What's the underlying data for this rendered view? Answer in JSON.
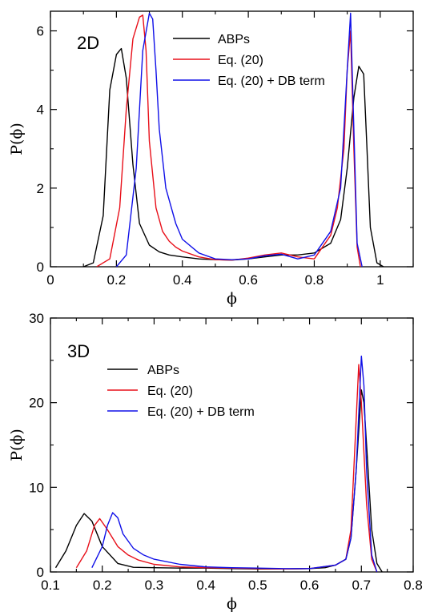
{
  "chart_data": [
    {
      "type": "line",
      "panel_label": "2D",
      "xlabel": "ϕ",
      "ylabel": "P(ϕ)",
      "xlim": [
        0,
        1.1
      ],
      "ylim": [
        0,
        6.5
      ],
      "xticks": [
        0,
        0.2,
        0.4,
        0.6,
        0.8,
        1
      ],
      "xtick_labels": [
        "0",
        "0.2",
        "0.4",
        "0.6",
        "0.8",
        "1"
      ],
      "yticks": [
        0,
        2,
        4,
        6
      ],
      "ytick_labels": [
        "0",
        "2",
        "4",
        "6"
      ],
      "grid": false,
      "legend_position": "top-right",
      "series": [
        {
          "name": "ABPs",
          "color": "#000000",
          "x": [
            0.1,
            0.13,
            0.16,
            0.18,
            0.2,
            0.215,
            0.23,
            0.25,
            0.27,
            0.3,
            0.33,
            0.36,
            0.4,
            0.45,
            0.5,
            0.55,
            0.6,
            0.65,
            0.7,
            0.75,
            0.8,
            0.85,
            0.88,
            0.9,
            0.92,
            0.935,
            0.95,
            0.96,
            0.97,
            0.99,
            1.01
          ],
          "y": [
            0.0,
            0.1,
            1.3,
            4.5,
            5.4,
            5.55,
            4.8,
            2.6,
            1.1,
            0.55,
            0.38,
            0.3,
            0.25,
            0.2,
            0.18,
            0.17,
            0.2,
            0.25,
            0.3,
            0.3,
            0.35,
            0.6,
            1.2,
            2.5,
            4.3,
            5.1,
            4.9,
            3.0,
            1.0,
            0.1,
            0.0
          ]
        },
        {
          "name": "Eq. (20)",
          "color": "#e8101a",
          "x": [
            0.14,
            0.18,
            0.21,
            0.23,
            0.25,
            0.27,
            0.28,
            0.29,
            0.3,
            0.32,
            0.34,
            0.36,
            0.38,
            0.4,
            0.45,
            0.5,
            0.55,
            0.6,
            0.65,
            0.7,
            0.75,
            0.8,
            0.85,
            0.87,
            0.89,
            0.9,
            0.91,
            0.92,
            0.93,
            0.94
          ],
          "y": [
            0.0,
            0.2,
            1.5,
            4.0,
            5.8,
            6.35,
            6.4,
            5.5,
            3.2,
            1.5,
            0.9,
            0.65,
            0.5,
            0.4,
            0.25,
            0.18,
            0.17,
            0.22,
            0.3,
            0.35,
            0.25,
            0.2,
            0.8,
            1.5,
            3.0,
            5.0,
            6.0,
            3.0,
            0.5,
            0.0
          ]
        },
        {
          "name": "Eq. (20) + DB term",
          "color": "#1010e8",
          "x": [
            0.2,
            0.23,
            0.26,
            0.28,
            0.3,
            0.31,
            0.32,
            0.33,
            0.35,
            0.38,
            0.4,
            0.45,
            0.5,
            0.55,
            0.6,
            0.65,
            0.7,
            0.75,
            0.8,
            0.85,
            0.88,
            0.9,
            0.91,
            0.92,
            0.93,
            0.945
          ],
          "y": [
            0.0,
            0.3,
            2.5,
            5.5,
            6.45,
            6.3,
            5.0,
            3.5,
            2.0,
            1.1,
            0.7,
            0.35,
            0.2,
            0.18,
            0.2,
            0.28,
            0.32,
            0.2,
            0.3,
            0.9,
            2.0,
            5.0,
            6.45,
            3.5,
            0.6,
            0.0
          ]
        }
      ]
    },
    {
      "type": "line",
      "panel_label": "3D",
      "xlabel": "ϕ",
      "ylabel": "P(ϕ)",
      "xlim": [
        0.1,
        0.8
      ],
      "ylim": [
        0,
        30
      ],
      "xticks": [
        0.1,
        0.2,
        0.3,
        0.4,
        0.5,
        0.6,
        0.7,
        0.8
      ],
      "xtick_labels": [
        "0.1",
        "0.2",
        "0.3",
        "0.4",
        "0.5",
        "0.6",
        "0.7",
        "0.8"
      ],
      "yticks": [
        0,
        10,
        20,
        30
      ],
      "ytick_labels": [
        "0",
        "10",
        "20",
        "30"
      ],
      "grid": false,
      "legend_position": "top-left",
      "series": [
        {
          "name": "ABPs",
          "color": "#000000",
          "x": [
            0.11,
            0.13,
            0.15,
            0.165,
            0.18,
            0.2,
            0.23,
            0.26,
            0.3,
            0.35,
            0.4,
            0.45,
            0.5,
            0.55,
            0.6,
            0.63,
            0.65,
            0.67,
            0.68,
            0.69,
            0.7,
            0.705,
            0.71,
            0.72,
            0.73,
            0.74
          ],
          "y": [
            0.5,
            2.5,
            5.5,
            6.9,
            6.0,
            3.0,
            1.0,
            0.55,
            0.5,
            0.45,
            0.45,
            0.4,
            0.35,
            0.35,
            0.4,
            0.5,
            0.8,
            1.5,
            4.0,
            12.0,
            21.5,
            20.0,
            15.0,
            5.0,
            1.0,
            0.0
          ]
        },
        {
          "name": "Eq. (20)",
          "color": "#e8101a",
          "x": [
            0.15,
            0.17,
            0.185,
            0.195,
            0.21,
            0.23,
            0.25,
            0.27,
            0.3,
            0.35,
            0.4,
            0.45,
            0.5,
            0.55,
            0.6,
            0.65,
            0.67,
            0.68,
            0.69,
            0.695,
            0.7,
            0.71,
            0.72,
            0.73
          ],
          "y": [
            0.5,
            2.5,
            5.5,
            6.3,
            5.0,
            3.0,
            2.0,
            1.4,
            0.9,
            0.6,
            0.5,
            0.45,
            0.4,
            0.35,
            0.4,
            0.8,
            1.5,
            5.0,
            18.0,
            24.5,
            20.0,
            8.0,
            1.5,
            0.0
          ]
        },
        {
          "name": "Eq. (20) + DB term",
          "color": "#1010e8",
          "x": [
            0.18,
            0.2,
            0.21,
            0.22,
            0.23,
            0.24,
            0.26,
            0.28,
            0.3,
            0.35,
            0.4,
            0.45,
            0.5,
            0.55,
            0.6,
            0.65,
            0.67,
            0.68,
            0.69,
            0.7,
            0.705,
            0.71,
            0.72,
            0.73
          ],
          "y": [
            0.5,
            3.0,
            5.5,
            7.0,
            6.4,
            4.5,
            2.8,
            2.0,
            1.5,
            0.9,
            0.6,
            0.5,
            0.45,
            0.4,
            0.4,
            0.8,
            1.5,
            4.0,
            12.0,
            25.5,
            22.0,
            12.0,
            2.0,
            0.0
          ]
        }
      ]
    }
  ]
}
